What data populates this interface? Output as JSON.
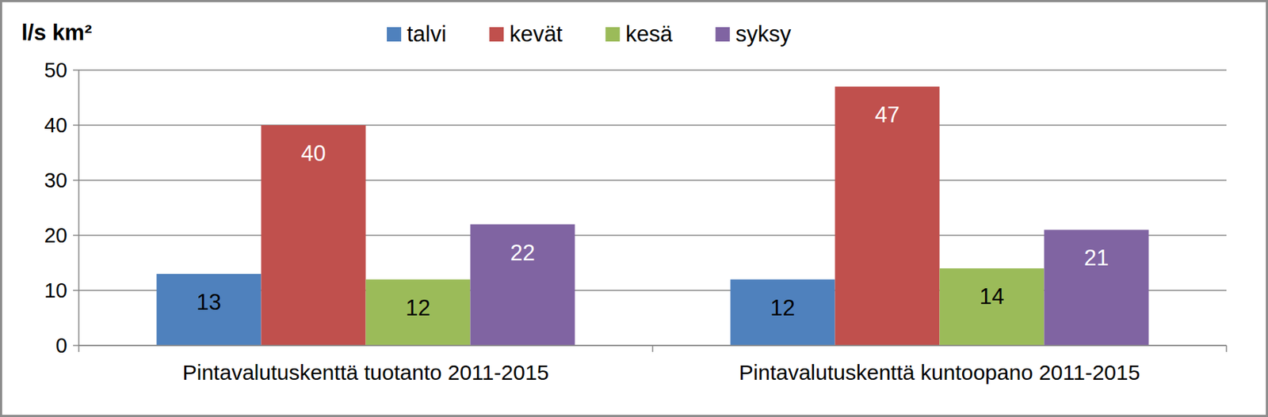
{
  "chart_data": {
    "type": "bar",
    "ylabel": "l/s km²",
    "categories": [
      "Pintavalutuskenttä tuotanto 2011-2015",
      "Pintavalutuskenttä kuntoopano 2011-2015"
    ],
    "series": [
      {
        "name": "talvi",
        "color": "#4f81bd",
        "values": [
          13,
          12
        ]
      },
      {
        "name": "kevät",
        "color": "#c0504d",
        "values": [
          40,
          47
        ]
      },
      {
        "name": "kesä",
        "color": "#9bbb59",
        "values": [
          12,
          14
        ]
      },
      {
        "name": "syksy",
        "color": "#8064a2",
        "values": [
          22,
          21
        ]
      }
    ],
    "ylim": [
      0,
      50
    ],
    "yticks": [
      0,
      10,
      20,
      30,
      40,
      50
    ],
    "grid": true,
    "legend": "top",
    "data_labels": true
  }
}
